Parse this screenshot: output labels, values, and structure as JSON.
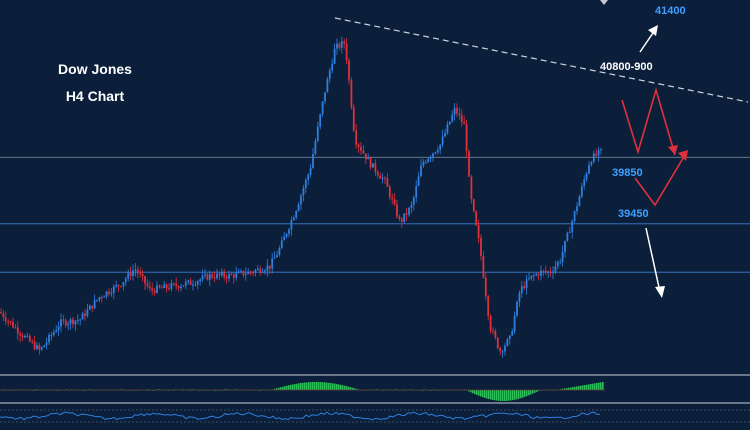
{
  "chart_data": {
    "type": "candlestick",
    "title_line1": "Dow Jones",
    "title_line2": "H4 Chart",
    "y_range": [
      38600,
      41700
    ],
    "levels": [
      {
        "label": "41400",
        "value": 41400,
        "color": "#3fa0ff"
      },
      {
        "label": "40800-900",
        "value": 40850,
        "color": "#ffffff"
      },
      {
        "label": "39850",
        "value": 39850,
        "color": "#3fa0ff"
      },
      {
        "label": "39450",
        "value": 39450,
        "color": "#3fa0ff"
      }
    ],
    "horizontal_lines": [
      40400,
      39850,
      39450
    ],
    "bullish_color": "#2f7fe0",
    "bearish_color": "#e0303c",
    "trend_line_color": "#cfd6df",
    "panels": [
      "MACD histogram",
      "Oscillator"
    ],
    "grid": false
  }
}
